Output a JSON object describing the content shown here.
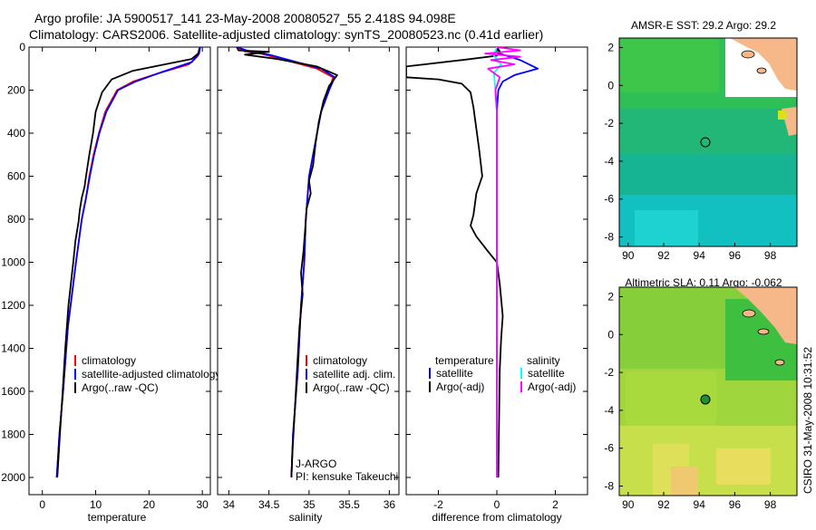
{
  "title": {
    "line1": "Argo profile: JA 5900517_141 23-May-2008 20080527_55 2.418S 94.098E",
    "line2": "Climatology: CARS2006. Satellite-adjusted climatology: synTS_20080523.nc (0.41d earlier)"
  },
  "side_label": "CSIRO 31-May-2008 10:31:52",
  "chart_data": [
    {
      "type": "line",
      "id": "temperature",
      "xlabel": "temperature",
      "ylabel": "",
      "xlim": [
        -2.5,
        31.5
      ],
      "ylim": [
        0,
        2080
      ],
      "y_reversed": true,
      "xticks": [
        0,
        10,
        20,
        30
      ],
      "yticks": [
        0,
        200,
        400,
        600,
        800,
        1000,
        1200,
        1400,
        1600,
        1800,
        2000
      ],
      "legend": [
        "climatology",
        "satellite-adjusted climatology",
        "Argo(..raw -QC)"
      ],
      "legend_position": "lower-right",
      "series": [
        {
          "name": "climatology",
          "color": "#ff0000",
          "points": [
            [
              29.5,
              0
            ],
            [
              29.2,
              40
            ],
            [
              27.5,
              80
            ],
            [
              22,
              120
            ],
            [
              17,
              160
            ],
            [
              14,
              200
            ],
            [
              11.8,
              300
            ],
            [
              10.6,
              400
            ],
            [
              9.6,
              500
            ],
            [
              8.8,
              600
            ],
            [
              8.2,
              700
            ],
            [
              7.4,
              800
            ],
            [
              6.3,
              1000
            ],
            [
              4.8,
              1300
            ],
            [
              3.9,
              1600
            ],
            [
              3.2,
              1800
            ],
            [
              2.7,
              2000
            ]
          ]
        },
        {
          "name": "satellite-adjusted climatology",
          "color": "#0000ff",
          "points": [
            [
              29.6,
              0
            ],
            [
              29.4,
              30
            ],
            [
              28,
              70
            ],
            [
              22.5,
              115
            ],
            [
              17.5,
              160
            ],
            [
              14.2,
              200
            ],
            [
              12,
              300
            ],
            [
              10.7,
              400
            ],
            [
              9.7,
              500
            ],
            [
              8.9,
              600
            ],
            [
              8.2,
              700
            ],
            [
              7.4,
              800
            ],
            [
              6.3,
              1000
            ],
            [
              4.8,
              1300
            ],
            [
              3.9,
              1600
            ],
            [
              3.2,
              1800
            ],
            [
              2.7,
              2000
            ]
          ]
        },
        {
          "name": "Argo(..raw -QC)",
          "color": "#000000",
          "points": [
            [
              29.5,
              5
            ],
            [
              29.2,
              30
            ],
            [
              28,
              55
            ],
            [
              23,
              80
            ],
            [
              17,
              110
            ],
            [
              13,
              150
            ],
            [
              11.2,
              210
            ],
            [
              10,
              300
            ],
            [
              9.5,
              400
            ],
            [
              8.8,
              500
            ],
            [
              8.2,
              600
            ],
            [
              7.9,
              650
            ],
            [
              7.4,
              700
            ],
            [
              7,
              760
            ],
            [
              6.8,
              810
            ],
            [
              6.2,
              900
            ],
            [
              5.8,
              1000
            ],
            [
              4.9,
              1200
            ],
            [
              4.3,
              1400
            ],
            [
              3.8,
              1600
            ],
            [
              3.3,
              1800
            ],
            [
              2.8,
              2000
            ]
          ]
        }
      ]
    },
    {
      "type": "line",
      "id": "salinity",
      "xlabel": "salinity",
      "ylabel": "",
      "xlim": [
        33.86,
        36.12
      ],
      "ylim": [
        0,
        2080
      ],
      "y_reversed": true,
      "xticks": [
        34,
        34.5,
        35,
        35.5,
        36
      ],
      "legend": [
        "climatology",
        "satellite adj. clim.",
        "Argo(..raw -QC)"
      ],
      "legend_position": "lower-right",
      "annotation": [
        "J-ARGO",
        "PI: kensuke Takeuchi"
      ],
      "series": [
        {
          "name": "climatology",
          "color": "#ff0000",
          "points": [
            [
              34.1,
              0
            ],
            [
              34.2,
              20
            ],
            [
              34.4,
              30
            ],
            [
              34.7,
              60
            ],
            [
              35.1,
              100
            ],
            [
              35.3,
              140
            ],
            [
              35.25,
              200
            ],
            [
              35.15,
              300
            ],
            [
              35.1,
              400
            ],
            [
              35.05,
              500
            ],
            [
              35.0,
              600
            ],
            [
              34.98,
              700
            ],
            [
              34.96,
              800
            ],
            [
              34.94,
              1000
            ],
            [
              34.9,
              1200
            ],
            [
              34.86,
              1500
            ],
            [
              34.8,
              1800
            ],
            [
              34.78,
              2000
            ]
          ]
        },
        {
          "name": "satellite adj. clim.",
          "color": "#0000ff",
          "points": [
            [
              34.1,
              0
            ],
            [
              34.3,
              25
            ],
            [
              34.5,
              35
            ],
            [
              34.75,
              60
            ],
            [
              35.15,
              100
            ],
            [
              35.32,
              140
            ],
            [
              35.25,
              200
            ],
            [
              35.15,
              300
            ],
            [
              35.1,
              400
            ],
            [
              35.05,
              500
            ],
            [
              35.0,
              600
            ],
            [
              34.98,
              700
            ],
            [
              34.96,
              800
            ],
            [
              34.94,
              1000
            ],
            [
              34.9,
              1200
            ],
            [
              34.86,
              1500
            ],
            [
              34.8,
              1800
            ],
            [
              34.78,
              2000
            ]
          ]
        },
        {
          "name": "Argo(..raw -QC)",
          "color": "#000000",
          "points": [
            [
              34.1,
              0
            ],
            [
              34.12,
              15
            ],
            [
              34.5,
              22
            ],
            [
              34.2,
              35
            ],
            [
              34.6,
              55
            ],
            [
              35.1,
              90
            ],
            [
              35.35,
              130
            ],
            [
              35.25,
              180
            ],
            [
              35.18,
              250
            ],
            [
              35.12,
              350
            ],
            [
              35.08,
              450
            ],
            [
              35.05,
              550
            ],
            [
              35.0,
              620
            ],
            [
              35.02,
              680
            ],
            [
              34.97,
              750
            ],
            [
              34.95,
              850
            ],
            [
              34.93,
              950
            ],
            [
              34.9,
              1050
            ],
            [
              34.92,
              1150
            ],
            [
              34.88,
              1300
            ],
            [
              34.85,
              1500
            ],
            [
              34.82,
              1700
            ],
            [
              34.79,
              1900
            ],
            [
              34.78,
              2000
            ]
          ]
        }
      ]
    },
    {
      "type": "line",
      "id": "difference",
      "xlabel": "difference from climatology",
      "ylabel": "",
      "xlim": [
        -3.1,
        3.1
      ],
      "ylim": [
        0,
        2080
      ],
      "y_reversed": true,
      "xticks": [
        -2,
        0,
        2
      ],
      "legend_columns": [
        {
          "heading": "temperature",
          "entries": [
            "satellite",
            "Argo(-adj)"
          ]
        },
        {
          "heading": "salinity",
          "entries": [
            "satellite",
            "Argo(-adj)"
          ]
        }
      ],
      "legend_position": "lower-center",
      "series": [
        {
          "name": "temperature satellite",
          "color": "#0000ff",
          "points": [
            [
              0,
              0
            ],
            [
              0.1,
              30
            ],
            [
              0.8,
              60
            ],
            [
              1.4,
              100
            ],
            [
              0.6,
              130
            ],
            [
              0.2,
              160
            ],
            [
              0.05,
              200
            ],
            [
              0,
              300
            ],
            [
              0,
              2000
            ]
          ]
        },
        {
          "name": "temperature Argo(-adj)",
          "color": "#000000",
          "points": [
            [
              0,
              0
            ],
            [
              0.1,
              20
            ],
            [
              0,
              40
            ],
            [
              -1.2,
              60
            ],
            [
              -3.1,
              90
            ],
            [
              -3.1,
              140
            ],
            [
              -2,
              150
            ],
            [
              -1.2,
              170
            ],
            [
              -0.9,
              210
            ],
            [
              -0.8,
              280
            ],
            [
              -0.7,
              380
            ],
            [
              -0.6,
              480
            ],
            [
              -0.5,
              600
            ],
            [
              -0.7,
              680
            ],
            [
              -0.8,
              780
            ],
            [
              -0.9,
              830
            ],
            [
              -0.7,
              880
            ],
            [
              -0.3,
              950
            ],
            [
              0,
              1000
            ],
            [
              0.1,
              1100
            ],
            [
              0.2,
              1250
            ],
            [
              0.15,
              1350
            ],
            [
              0.1,
              1500
            ],
            [
              0.05,
              2000
            ]
          ]
        },
        {
          "name": "salinity satellite",
          "color": "#00ffff",
          "points": [
            [
              0,
              0
            ],
            [
              -0.1,
              40
            ],
            [
              0.15,
              80
            ],
            [
              -0.1,
              120
            ],
            [
              -0.05,
              200
            ],
            [
              0,
              300
            ],
            [
              0,
              2000
            ]
          ]
        },
        {
          "name": "salinity Argo(-adj)",
          "color": "#ff00ff",
          "points": [
            [
              0,
              0
            ],
            [
              0.8,
              15
            ],
            [
              -0.4,
              30
            ],
            [
              0.8,
              45
            ],
            [
              -0.2,
              60
            ],
            [
              0.6,
              80
            ],
            [
              -0.3,
              100
            ],
            [
              0.1,
              140
            ],
            [
              -0.05,
              200
            ],
            [
              0,
              300
            ],
            [
              0,
              2000
            ]
          ]
        }
      ]
    },
    {
      "type": "heatmap",
      "id": "sst_map",
      "title": "AMSR-E SST: 29.2  Argo: 29.2",
      "xlim": [
        89.5,
        99.5
      ],
      "ylim": [
        -8.5,
        2.5
      ],
      "xticks": [
        90,
        92,
        94,
        96,
        98
      ],
      "yticks": [
        -8,
        -6,
        -4,
        -2,
        0,
        2
      ],
      "marker": {
        "lon": 94.098,
        "lat": -2.418,
        "filled": false
      }
    },
    {
      "type": "heatmap",
      "id": "sla_map",
      "title": "Altimetric SLA: 0.11  Argo: -0.062",
      "xlim": [
        89.5,
        99.5
      ],
      "ylim": [
        -8.5,
        2.5
      ],
      "xticks": [
        90,
        92,
        94,
        96,
        98
      ],
      "yticks": [
        -8,
        -6,
        -4,
        -2,
        0,
        2
      ],
      "marker": {
        "lon": 94.098,
        "lat": -2.418,
        "filled": true
      }
    }
  ]
}
